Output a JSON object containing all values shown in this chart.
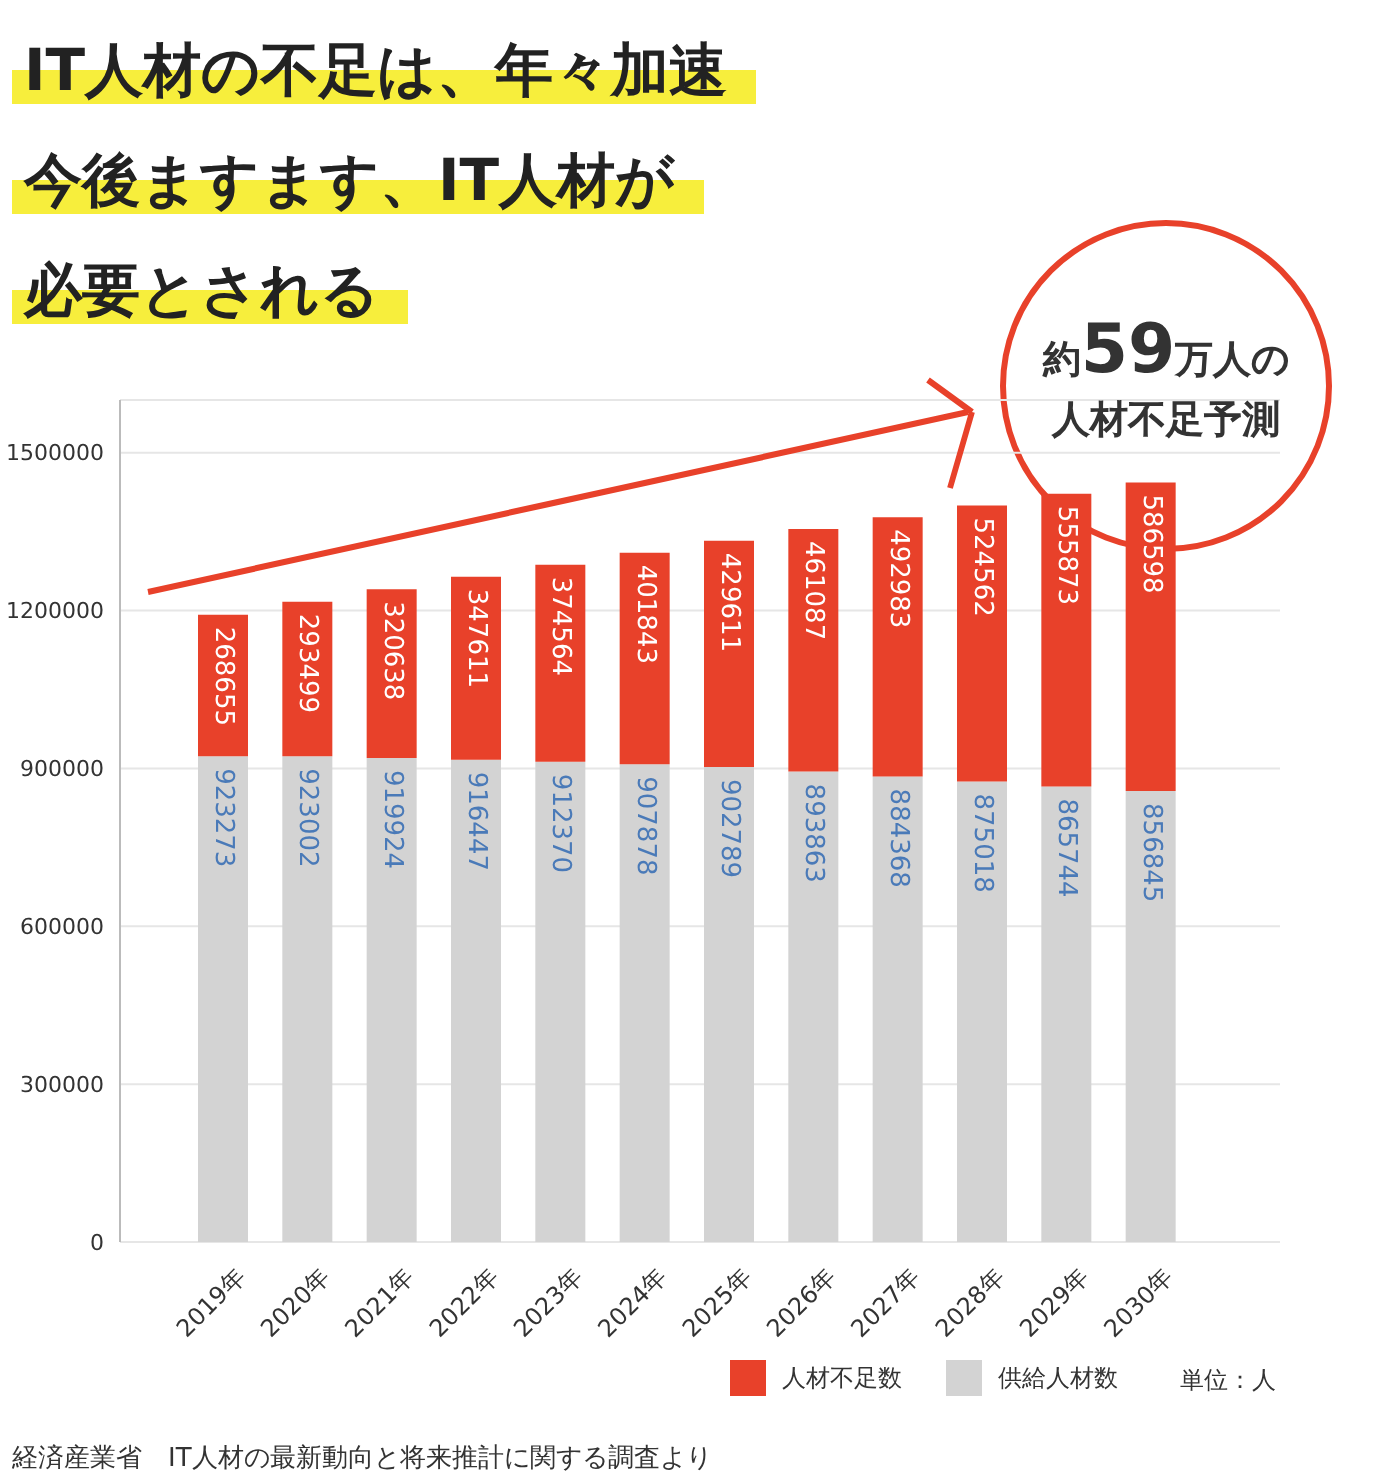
{
  "chart_data": {
    "type": "bar",
    "title": "IT人材の不足は、年々加速",
    "subtitle": "今後ますます、IT人材が必要とされる",
    "categories": [
      "2019年",
      "2020年",
      "2021年",
      "2022年",
      "2023年",
      "2024年",
      "2025年",
      "2026年",
      "2027年",
      "2028年",
      "2029年",
      "2030年"
    ],
    "stacked": true,
    "series": [
      {
        "name": "供給人材数",
        "color": "#d3d3d3",
        "values": [
          923273,
          923002,
          919924,
          916447,
          912370,
          907878,
          902789,
          893863,
          884368,
          875018,
          865744,
          856845
        ]
      },
      {
        "name": "人材不足数",
        "color": "#e8412a",
        "values": [
          268655,
          293499,
          320638,
          347611,
          374564,
          401843,
          429611,
          461087,
          492983,
          524562,
          555873,
          586598
        ]
      }
    ],
    "data_labels": true,
    "ylim": [
      0,
      1600000
    ],
    "yticks": [
      0,
      300000,
      600000,
      900000,
      1200000,
      1500000
    ],
    "grid": "y",
    "legend": "bottom right",
    "annotations": [
      "約59万人の人材不足予測",
      "単位：人",
      "経済産業省　IT人材の最新動向と将来推計に関する調査より"
    ]
  }
}
